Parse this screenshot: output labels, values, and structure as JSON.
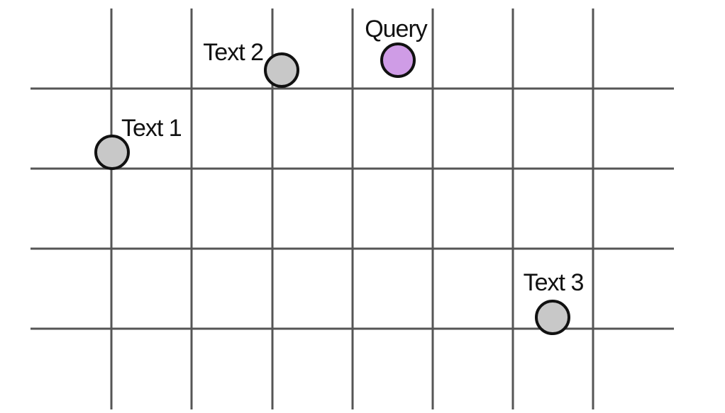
{
  "colors": {
    "grid": "#555555",
    "outline": "#111111",
    "text_point_fill": "#c8c8c8",
    "query_point_fill": "#cf9ce6",
    "background": "#ffffff"
  },
  "grid": {
    "columns": 7,
    "rows": 4
  },
  "points": [
    {
      "id": "query",
      "label": "Query",
      "kind": "query",
      "label_side": "above"
    },
    {
      "id": "text-1",
      "label": "Text 1",
      "kind": "text",
      "label_side": "upper-right"
    },
    {
      "id": "text-2",
      "label": "Text 2",
      "kind": "text",
      "label_side": "upper-left"
    },
    {
      "id": "text-3",
      "label": "Text 3",
      "kind": "text",
      "label_side": "above"
    }
  ]
}
